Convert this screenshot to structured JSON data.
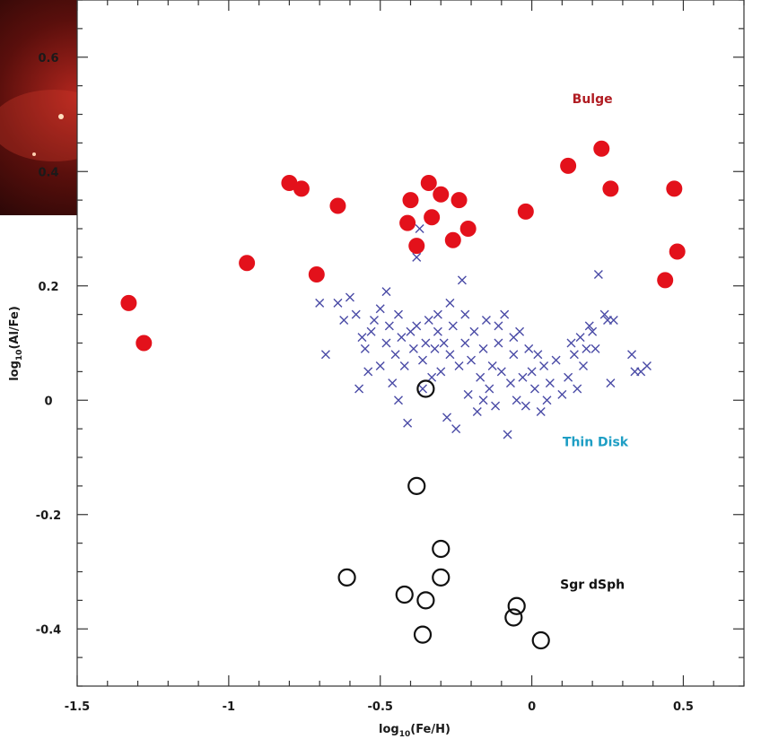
{
  "chart_data": {
    "type": "scatter",
    "title": "",
    "xlabel": "log10(Fe/H)",
    "ylabel": "log10(Al/Fe)",
    "xlim": [
      -1.5,
      0.7
    ],
    "ylim": [
      -0.5,
      0.7
    ],
    "xticks": [
      -1.5,
      -1,
      -0.5,
      0,
      0.5
    ],
    "xtick_labels": [
      "-1.5",
      "-1",
      "-0.5",
      "0",
      "0.5"
    ],
    "yticks": [
      -0.4,
      -0.2,
      0,
      0.2,
      0.4,
      0.6
    ],
    "ytick_labels": [
      "-0.4",
      "-0.2",
      "0",
      "0.2",
      "0.4",
      "0.6"
    ],
    "grid": false,
    "legend": "none",
    "annotations": [
      {
        "text": "Bulge",
        "x": 0.2,
        "y": 0.52,
        "color": "#b01c22"
      },
      {
        "text": "Thin Disk",
        "x": 0.21,
        "y": -0.08,
        "color": "#1e9ec4"
      },
      {
        "text": "Sgr dSph",
        "x": 0.2,
        "y": -0.33,
        "color": "#111111"
      }
    ],
    "series": [
      {
        "marker": "filled-circle",
        "color": "#e3111b",
        "points": [
          [
            -1.33,
            0.17
          ],
          [
            -1.28,
            0.1
          ],
          [
            -0.94,
            0.24
          ],
          [
            -0.8,
            0.38
          ],
          [
            -0.76,
            0.37
          ],
          [
            -0.71,
            0.22
          ],
          [
            -0.64,
            0.34
          ],
          [
            -0.4,
            0.35
          ],
          [
            -0.41,
            0.31
          ],
          [
            -0.38,
            0.27
          ],
          [
            -0.34,
            0.38
          ],
          [
            -0.33,
            0.32
          ],
          [
            -0.3,
            0.36
          ],
          [
            -0.26,
            0.28
          ],
          [
            -0.24,
            0.35
          ],
          [
            -0.21,
            0.3
          ],
          [
            -0.02,
            0.33
          ],
          [
            0.12,
            0.41
          ],
          [
            0.23,
            0.44
          ],
          [
            0.26,
            0.37
          ],
          [
            0.44,
            0.21
          ],
          [
            0.47,
            0.37
          ],
          [
            0.48,
            0.26
          ]
        ]
      },
      {
        "marker": "x",
        "color": "#4a4ba6",
        "points": [
          [
            -0.7,
            0.17
          ],
          [
            -0.68,
            0.08
          ],
          [
            -0.64,
            0.17
          ],
          [
            -0.62,
            0.14
          ],
          [
            -0.6,
            0.18
          ],
          [
            -0.58,
            0.15
          ],
          [
            -0.56,
            0.11
          ],
          [
            -0.55,
            0.09
          ],
          [
            -0.53,
            0.12
          ],
          [
            -0.52,
            0.14
          ],
          [
            -0.5,
            0.06
          ],
          [
            -0.5,
            0.16
          ],
          [
            -0.48,
            0.1
          ],
          [
            -0.47,
            0.13
          ],
          [
            -0.46,
            0.03
          ],
          [
            -0.45,
            0.08
          ],
          [
            -0.44,
            0.15
          ],
          [
            -0.43,
            0.11
          ],
          [
            -0.42,
            0.06
          ],
          [
            -0.41,
            -0.04
          ],
          [
            -0.4,
            0.12
          ],
          [
            -0.39,
            0.09
          ],
          [
            -0.38,
            0.13
          ],
          [
            -0.38,
            0.25
          ],
          [
            -0.37,
            0.3
          ],
          [
            -0.36,
            0.07
          ],
          [
            -0.35,
            0.1
          ],
          [
            -0.34,
            0.14
          ],
          [
            -0.33,
            0.04
          ],
          [
            -0.32,
            0.09
          ],
          [
            -0.31,
            0.12
          ],
          [
            -0.3,
            0.05
          ],
          [
            -0.29,
            0.1
          ],
          [
            -0.28,
            -0.03
          ],
          [
            -0.27,
            0.08
          ],
          [
            -0.26,
            0.13
          ],
          [
            -0.25,
            -0.05
          ],
          [
            -0.24,
            0.06
          ],
          [
            -0.23,
            0.21
          ],
          [
            -0.22,
            0.1
          ],
          [
            -0.21,
            0.01
          ],
          [
            -0.2,
            0.07
          ],
          [
            -0.19,
            0.12
          ],
          [
            -0.18,
            -0.02
          ],
          [
            -0.17,
            0.04
          ],
          [
            -0.16,
            0.09
          ],
          [
            -0.15,
            0.14
          ],
          [
            -0.14,
            0.02
          ],
          [
            -0.13,
            0.06
          ],
          [
            -0.12,
            -0.01
          ],
          [
            -0.11,
            0.1
          ],
          [
            -0.1,
            0.05
          ],
          [
            -0.09,
            0.15
          ],
          [
            -0.08,
            -0.06
          ],
          [
            -0.07,
            0.03
          ],
          [
            -0.06,
            0.08
          ],
          [
            -0.05,
            0.0
          ],
          [
            -0.04,
            0.12
          ],
          [
            -0.03,
            0.04
          ],
          [
            -0.02,
            -0.01
          ],
          [
            -0.01,
            0.09
          ],
          [
            0.0,
            0.05
          ],
          [
            0.01,
            0.02
          ],
          [
            0.02,
            0.08
          ],
          [
            0.03,
            -0.02
          ],
          [
            0.04,
            0.06
          ],
          [
            0.05,
            0.0
          ],
          [
            0.06,
            0.03
          ],
          [
            0.08,
            0.07
          ],
          [
            0.1,
            0.01
          ],
          [
            0.12,
            0.04
          ],
          [
            0.13,
            0.1
          ],
          [
            0.14,
            0.08
          ],
          [
            0.15,
            0.02
          ],
          [
            0.16,
            0.11
          ],
          [
            0.17,
            0.06
          ],
          [
            0.18,
            0.09
          ],
          [
            0.19,
            0.13
          ],
          [
            0.2,
            0.12
          ],
          [
            0.21,
            0.09
          ],
          [
            0.22,
            0.22
          ],
          [
            0.24,
            0.15
          ],
          [
            0.25,
            0.14
          ],
          [
            0.26,
            0.03
          ],
          [
            0.27,
            0.14
          ],
          [
            0.33,
            0.08
          ],
          [
            0.34,
            0.05
          ],
          [
            0.36,
            0.05
          ],
          [
            0.38,
            0.06
          ],
          [
            -0.54,
            0.05
          ],
          [
            -0.57,
            0.02
          ],
          [
            -0.48,
            0.19
          ],
          [
            -0.44,
            0.0
          ],
          [
            -0.36,
            0.02
          ],
          [
            -0.31,
            0.15
          ],
          [
            -0.27,
            0.17
          ],
          [
            -0.22,
            0.15
          ],
          [
            -0.16,
            0.0
          ],
          [
            -0.11,
            0.13
          ],
          [
            -0.06,
            0.11
          ]
        ]
      },
      {
        "marker": "open-circle",
        "color": "#111111",
        "points": [
          [
            -0.35,
            0.02
          ],
          [
            -0.38,
            -0.15
          ],
          [
            -0.61,
            -0.31
          ],
          [
            -0.3,
            -0.26
          ],
          [
            -0.3,
            -0.31
          ],
          [
            -0.42,
            -0.34
          ],
          [
            -0.35,
            -0.35
          ],
          [
            -0.36,
            -0.41
          ],
          [
            -0.05,
            -0.36
          ],
          [
            -0.06,
            -0.38
          ],
          [
            0.03,
            -0.42
          ]
        ]
      }
    ]
  }
}
